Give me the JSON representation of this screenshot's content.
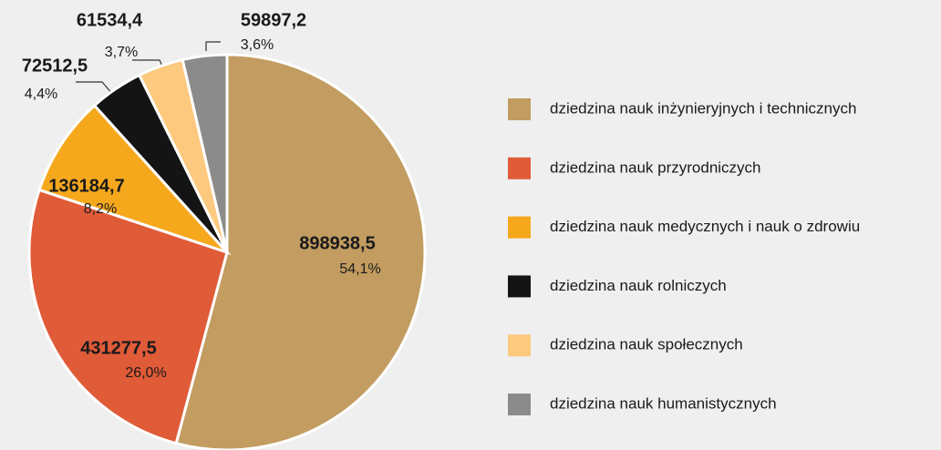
{
  "chart_data": {
    "type": "pie",
    "categories": [
      "dziedzina nauk inżynieryjnych i technicznych",
      "dziedzina nauk przyrodniczych",
      "dziedzina nauk medycznych i nauk o zdrowiu",
      "dziedzina nauk rolniczych",
      "dziedzina nauk społecznych",
      "dziedzina nauk humanistycznych"
    ],
    "values": [
      898938.5,
      431277.5,
      136184.7,
      72512.5,
      61534.4,
      59897.2
    ],
    "value_labels": [
      "898938,5",
      "431277,5",
      "136184,7",
      "72512,5",
      "61534,4",
      "59897,2"
    ],
    "percents": [
      54.1,
      26.0,
      8.2,
      4.4,
      3.7,
      3.6
    ],
    "percent_labels": [
      "54,1%",
      "26,0%",
      "8,2%",
      "4,4%",
      "3,7%",
      "3,6%"
    ],
    "colors": [
      "#c29c60",
      "#e05b38",
      "#f6a81d",
      "#141414",
      "#fdc97e",
      "#8b8b8b"
    ],
    "legend": "right"
  }
}
